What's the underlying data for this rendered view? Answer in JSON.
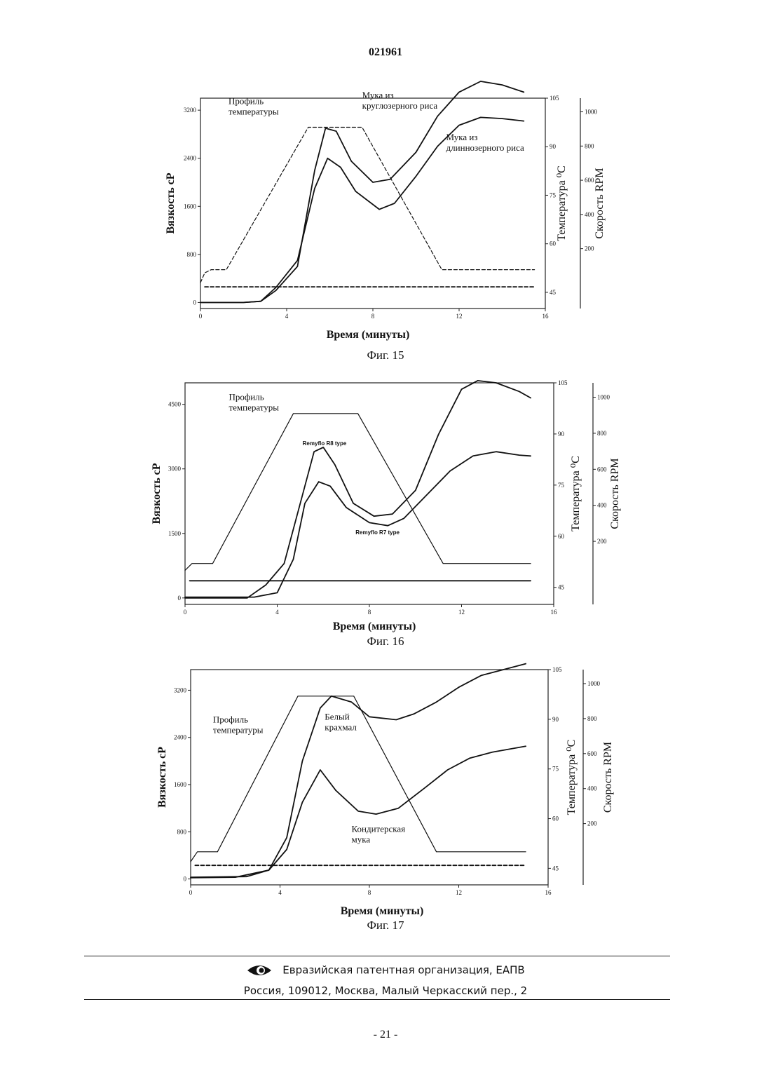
{
  "page": {
    "number_top": "021961",
    "number_bottom": "- 21 -"
  },
  "footer": {
    "org_line": "Евразийская патентная организация, ЕАПВ",
    "address_line": "Россия, 109012, Москва, Малый Черкасский пер., 2",
    "logo_icon": "eapo-eye-logo-icon"
  },
  "chart_data": [
    {
      "type": "line",
      "caption": "Фиг. 15",
      "xlabel": "Время (минуты)",
      "ylabel_left": "Вязкость сР",
      "ylabel_right1": "Температура ⁰С",
      "ylabel_right2": "Скорость RPM",
      "xlim": [
        0,
        16
      ],
      "ylim": [
        -100,
        3400
      ],
      "temp_lim": [
        40,
        105
      ],
      "rpm_lim": [
        -150,
        1080
      ],
      "x_ticks": [
        "0",
        "4",
        "8",
        "12",
        "16"
      ],
      "y_ticks": [
        "0",
        "800",
        "1600",
        "2400",
        "3200"
      ],
      "temp_ticks": [
        "45",
        "60",
        "75",
        "90",
        "105"
      ],
      "rpm_ticks": [
        "200",
        "400",
        "600",
        "800",
        "1000"
      ],
      "annotations": [
        {
          "text": [
            "Профиль",
            "температуры"
          ],
          "x": 1.3,
          "y": 3300
        },
        {
          "text": [
            "Мука из",
            "круглозерного риса"
          ],
          "x": 7.5,
          "y": 3400
        },
        {
          "text": [
            "Мука из",
            "длиннозерного риса"
          ],
          "x": 11.4,
          "y": 2700
        }
      ],
      "series": [
        {
          "name": "Профиль температуры",
          "axis": "temp",
          "style": "dashed",
          "x": [
            0,
            0.2,
            0.5,
            1.2,
            5,
            7.5,
            11.2,
            12,
            15.5
          ],
          "y": [
            48,
            51,
            52,
            52,
            96,
            96,
            52,
            52,
            52
          ]
        },
        {
          "name": "Мука из круглозерного риса",
          "axis": "left",
          "style": "solid",
          "x": [
            0,
            2,
            2.8,
            3.5,
            4.5,
            5.3,
            5.8,
            6.3,
            7,
            8,
            8.8,
            10,
            11,
            12,
            13,
            14,
            15
          ],
          "y": [
            0,
            0,
            20,
            200,
            600,
            2200,
            2900,
            2850,
            2350,
            2000,
            2050,
            2500,
            3100,
            3500,
            3680,
            3620,
            3500
          ]
        },
        {
          "name": "Мука из длиннозерного риса",
          "axis": "left",
          "style": "solid",
          "x": [
            0,
            2,
            2.8,
            3.5,
            4.5,
            5.3,
            5.9,
            6.5,
            7.2,
            8.3,
            9,
            10,
            11,
            12,
            13,
            14,
            15
          ],
          "y": [
            0,
            0,
            20,
            250,
            700,
            1900,
            2400,
            2250,
            1850,
            1550,
            1650,
            2100,
            2600,
            2950,
            3080,
            3060,
            3020
          ]
        },
        {
          "name": "",
          "axis": "left",
          "style": "dashed",
          "x": [
            0.2,
            15.5
          ],
          "y": [
            260,
            260
          ]
        }
      ]
    },
    {
      "type": "line",
      "caption": "Фиг. 16",
      "xlabel": "Время (минуты)",
      "ylabel_left": "Вязкость сР",
      "ylabel_right1": "Температура ⁰С",
      "ylabel_right2": "Скорость RPM",
      "xlim": [
        0,
        16
      ],
      "ylim": [
        -150,
        5000
      ],
      "temp_lim": [
        40,
        105
      ],
      "rpm_lim": [
        -150,
        1080
      ],
      "x_ticks": [
        "0",
        "4",
        "8",
        "12",
        "16"
      ],
      "y_ticks": [
        "0",
        "1500",
        "3000",
        "4500"
      ],
      "temp_ticks": [
        "45",
        "60",
        "75",
        "90",
        "105"
      ],
      "rpm_ticks": [
        "200",
        "400",
        "600",
        "800",
        "1000"
      ],
      "annotations": [
        {
          "text": [
            "Профиль",
            "температуры"
          ],
          "x": 1.9,
          "y": 4600
        },
        {
          "text": [
            "Remyflo R8 type"
          ],
          "x": 5.1,
          "y": 3550
        },
        {
          "text": [
            "Remyflo R7 type"
          ],
          "x": 7.4,
          "y": 1480
        }
      ],
      "series": [
        {
          "name": "Профиль температуры",
          "axis": "temp",
          "style": "solid",
          "x": [
            0,
            0.3,
            1.2,
            4.7,
            7.5,
            11.2,
            12,
            15
          ],
          "y": [
            50,
            52,
            52,
            96,
            96,
            52,
            52,
            52
          ]
        },
        {
          "name": "Remyflo R8 type",
          "axis": "left",
          "style": "solid",
          "x": [
            0,
            2.7,
            3.5,
            4.3,
            5,
            5.6,
            6,
            6.5,
            7.3,
            8.2,
            9,
            10,
            11,
            12,
            12.7,
            13.5,
            14.5,
            15
          ],
          "y": [
            0,
            0,
            300,
            800,
            2200,
            3400,
            3500,
            3100,
            2200,
            1900,
            1950,
            2500,
            3800,
            4850,
            5050,
            5000,
            4800,
            4650
          ]
        },
        {
          "name": "Remyflo R7 type",
          "axis": "left",
          "style": "solid",
          "x": [
            0,
            3,
            4,
            4.7,
            5.2,
            5.8,
            6.3,
            7,
            8,
            8.8,
            9.5,
            10.5,
            11.5,
            12.5,
            13.5,
            14.5,
            15
          ],
          "y": [
            20,
            20,
            120,
            900,
            2200,
            2700,
            2600,
            2100,
            1750,
            1680,
            1850,
            2400,
            2950,
            3300,
            3400,
            3320,
            3300
          ]
        },
        {
          "name": "",
          "axis": "left",
          "style": "solid",
          "x": [
            0.2,
            15
          ],
          "y": [
            400,
            400
          ]
        }
      ]
    },
    {
      "type": "line",
      "caption": "Фиг. 17",
      "xlabel": "Время (минуты)",
      "ylabel_left": "Вязкость сР",
      "ylabel_right1": "Температура ⁰С",
      "ylabel_right2": "Скорость RPM",
      "xlim": [
        0,
        16
      ],
      "ylim": [
        -100,
        3550
      ],
      "temp_lim": [
        40,
        105
      ],
      "rpm_lim": [
        -150,
        1080
      ],
      "x_ticks": [
        "0",
        "4",
        "8",
        "12",
        "16"
      ],
      "y_ticks": [
        "0",
        "800",
        "1600",
        "2400",
        "3200"
      ],
      "temp_ticks": [
        "45",
        "60",
        "75",
        "90",
        "105"
      ],
      "rpm_ticks": [
        "200",
        "400",
        "600",
        "800",
        "1000"
      ],
      "annotations": [
        {
          "text": [
            "Профиль",
            "температуры"
          ],
          "x": 1.0,
          "y": 2650
        },
        {
          "text": [
            "Белый",
            "крахмал"
          ],
          "x": 6.0,
          "y": 2700
        },
        {
          "text": [
            "Кондитерская",
            "мука"
          ],
          "x": 7.2,
          "y": 800
        }
      ],
      "series": [
        {
          "name": "Профиль температуры",
          "axis": "temp",
          "style": "solid",
          "x": [
            0,
            0.3,
            1.2,
            4.8,
            7.3,
            11,
            12,
            15
          ],
          "y": [
            47,
            50,
            50,
            97,
            97,
            50,
            50,
            50
          ]
        },
        {
          "name": "Белый крахмал",
          "axis": "left",
          "style": "solid",
          "x": [
            0,
            2,
            3.5,
            4.3,
            5,
            5.8,
            6.3,
            7.2,
            8,
            9.2,
            10,
            11,
            12,
            13,
            14,
            15
          ],
          "y": [
            20,
            30,
            150,
            700,
            2000,
            2900,
            3100,
            3000,
            2750,
            2700,
            2800,
            3000,
            3250,
            3450,
            3550,
            3650
          ]
        },
        {
          "name": "Кондитерская мука",
          "axis": "left",
          "style": "solid",
          "x": [
            0,
            2.5,
            3.5,
            4.3,
            5,
            5.8,
            6.5,
            7.5,
            8.3,
            9.3,
            10.5,
            11.5,
            12.5,
            13.5,
            15
          ],
          "y": [
            30,
            40,
            150,
            500,
            1300,
            1850,
            1500,
            1150,
            1100,
            1200,
            1550,
            1850,
            2050,
            2150,
            2250
          ]
        },
        {
          "name": "",
          "axis": "left",
          "style": "dashed",
          "x": [
            0.2,
            15
          ],
          "y": [
            230,
            230
          ]
        }
      ]
    }
  ]
}
